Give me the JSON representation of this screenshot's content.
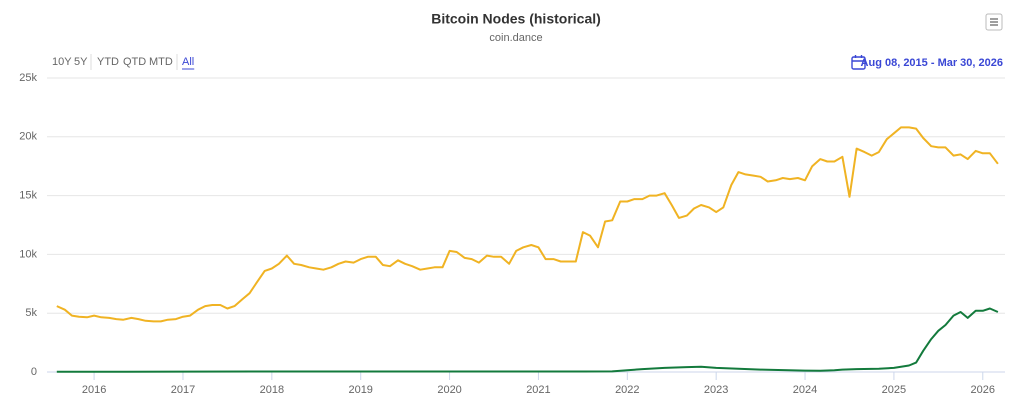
{
  "range_selector": {
    "buttons": [
      "10Y",
      "5Y",
      "YTD",
      "QTD",
      "MTD",
      "All"
    ],
    "date_range": "Aug 08, 2015 - Mar 30, 2026"
  },
  "chart_data": {
    "type": "line",
    "title": "Bitcoin Nodes (historical)",
    "subtitle": "coin.dance",
    "xlim": [
      2015.47,
      2026.25
    ],
    "xticks": [
      2016,
      2017,
      2018,
      2019,
      2020,
      2021,
      2022,
      2023,
      2024,
      2025,
      2026
    ],
    "ylim": [
      0,
      25000
    ],
    "yticks": [
      {
        "value": 0,
        "label": "0"
      },
      {
        "value": 5000,
        "label": "5k"
      },
      {
        "value": 10000,
        "label": "10k"
      },
      {
        "value": 15000,
        "label": "15k"
      },
      {
        "value": 20000,
        "label": "20k"
      },
      {
        "value": 25000,
        "label": "25k"
      }
    ],
    "grid": true,
    "series": [
      {
        "color": "#f0b323",
        "x": [
          2015.58,
          2015.67,
          2015.75,
          2015.83,
          2015.92,
          2016.0,
          2016.08,
          2016.17,
          2016.25,
          2016.33,
          2016.42,
          2016.5,
          2016.58,
          2016.67,
          2016.75,
          2016.83,
          2016.92,
          2017.0,
          2017.08,
          2017.17,
          2017.25,
          2017.33,
          2017.42,
          2017.5,
          2017.58,
          2017.67,
          2017.75,
          2017.83,
          2017.92,
          2018.0,
          2018.08,
          2018.17,
          2018.25,
          2018.33,
          2018.42,
          2018.5,
          2018.58,
          2018.67,
          2018.75,
          2018.83,
          2018.92,
          2019.0,
          2019.08,
          2019.17,
          2019.25,
          2019.33,
          2019.42,
          2019.5,
          2019.58,
          2019.67,
          2019.75,
          2019.83,
          2019.92,
          2020.0,
          2020.08,
          2020.17,
          2020.25,
          2020.33,
          2020.42,
          2020.5,
          2020.58,
          2020.67,
          2020.75,
          2020.83,
          2020.92,
          2021.0,
          2021.08,
          2021.17,
          2021.25,
          2021.33,
          2021.42,
          2021.5,
          2021.58,
          2021.67,
          2021.75,
          2021.83,
          2021.92,
          2022.0,
          2022.08,
          2022.17,
          2022.25,
          2022.33,
          2022.42,
          2022.5,
          2022.58,
          2022.67,
          2022.75,
          2022.83,
          2022.92,
          2023.0,
          2023.08,
          2023.17,
          2023.25,
          2023.33,
          2023.42,
          2023.5,
          2023.58,
          2023.67,
          2023.75,
          2023.83,
          2023.92,
          2024.0,
          2024.08,
          2024.17,
          2024.25,
          2024.33,
          2024.42,
          2024.5,
          2024.58,
          2024.67,
          2024.75,
          2024.83,
          2024.92,
          2025.0,
          2025.08,
          2025.17,
          2025.25,
          2025.33,
          2025.42,
          2025.5,
          2025.58,
          2025.67,
          2025.75,
          2025.83,
          2025.92,
          2026.0,
          2026.08,
          2026.17
        ],
        "values": [
          5600,
          5300,
          4800,
          4700,
          4650,
          4800,
          4650,
          4600,
          4500,
          4450,
          4600,
          4500,
          4350,
          4300,
          4300,
          4450,
          4500,
          4700,
          4800,
          5300,
          5600,
          5700,
          5700,
          5400,
          5600,
          6200,
          6700,
          7600,
          8600,
          8800,
          9200,
          9900,
          9200,
          9100,
          8900,
          8800,
          8700,
          8900,
          9200,
          9400,
          9300,
          9600,
          9800,
          9800,
          9100,
          9000,
          9500,
          9200,
          9000,
          8700,
          8800,
          8900,
          8900,
          10300,
          10200,
          9700,
          9600,
          9300,
          9900,
          9800,
          9800,
          9200,
          10300,
          10600,
          10800,
          10600,
          9600,
          9600,
          9400,
          9400,
          9400,
          11900,
          11600,
          10600,
          12800,
          12900,
          14500,
          14500,
          14700,
          14700,
          15000,
          15000,
          15200,
          14200,
          13100,
          13300,
          13900,
          14200,
          14000,
          13600,
          14000,
          15900,
          17000,
          16800,
          16700,
          16600,
          16200,
          16300,
          16500,
          16400,
          16500,
          16300,
          17500,
          18100,
          17900,
          17900,
          18300,
          14900,
          19000,
          18700,
          18400,
          18700,
          19800,
          20300,
          20800,
          20800,
          20700,
          19900,
          19200,
          19100,
          19100,
          18400,
          18500,
          18100,
          18800,
          18600,
          18600,
          17700
        ]
      },
      {
        "color": "#137a3c",
        "x": [
          2015.58,
          2016.0,
          2017.0,
          2018.0,
          2019.0,
          2020.0,
          2021.0,
          2021.5,
          2021.83,
          2022.0,
          2022.17,
          2022.42,
          2022.67,
          2022.83,
          2023.0,
          2023.25,
          2023.5,
          2024.0,
          2024.17,
          2024.33,
          2024.42,
          2024.58,
          2024.83,
          2025.0,
          2025.17,
          2025.25,
          2025.33,
          2025.42,
          2025.5,
          2025.58,
          2025.67,
          2025.75,
          2025.83,
          2025.92,
          2026.0,
          2026.08,
          2026.17
        ],
        "values": [
          20,
          20,
          30,
          40,
          40,
          40,
          40,
          40,
          50,
          150,
          250,
          350,
          420,
          450,
          350,
          280,
          200,
          120,
          100,
          150,
          200,
          250,
          280,
          350,
          550,
          800,
          1800,
          2800,
          3500,
          4000,
          4800,
          5100,
          4600,
          5200,
          5200,
          5400,
          5100
        ]
      }
    ]
  }
}
